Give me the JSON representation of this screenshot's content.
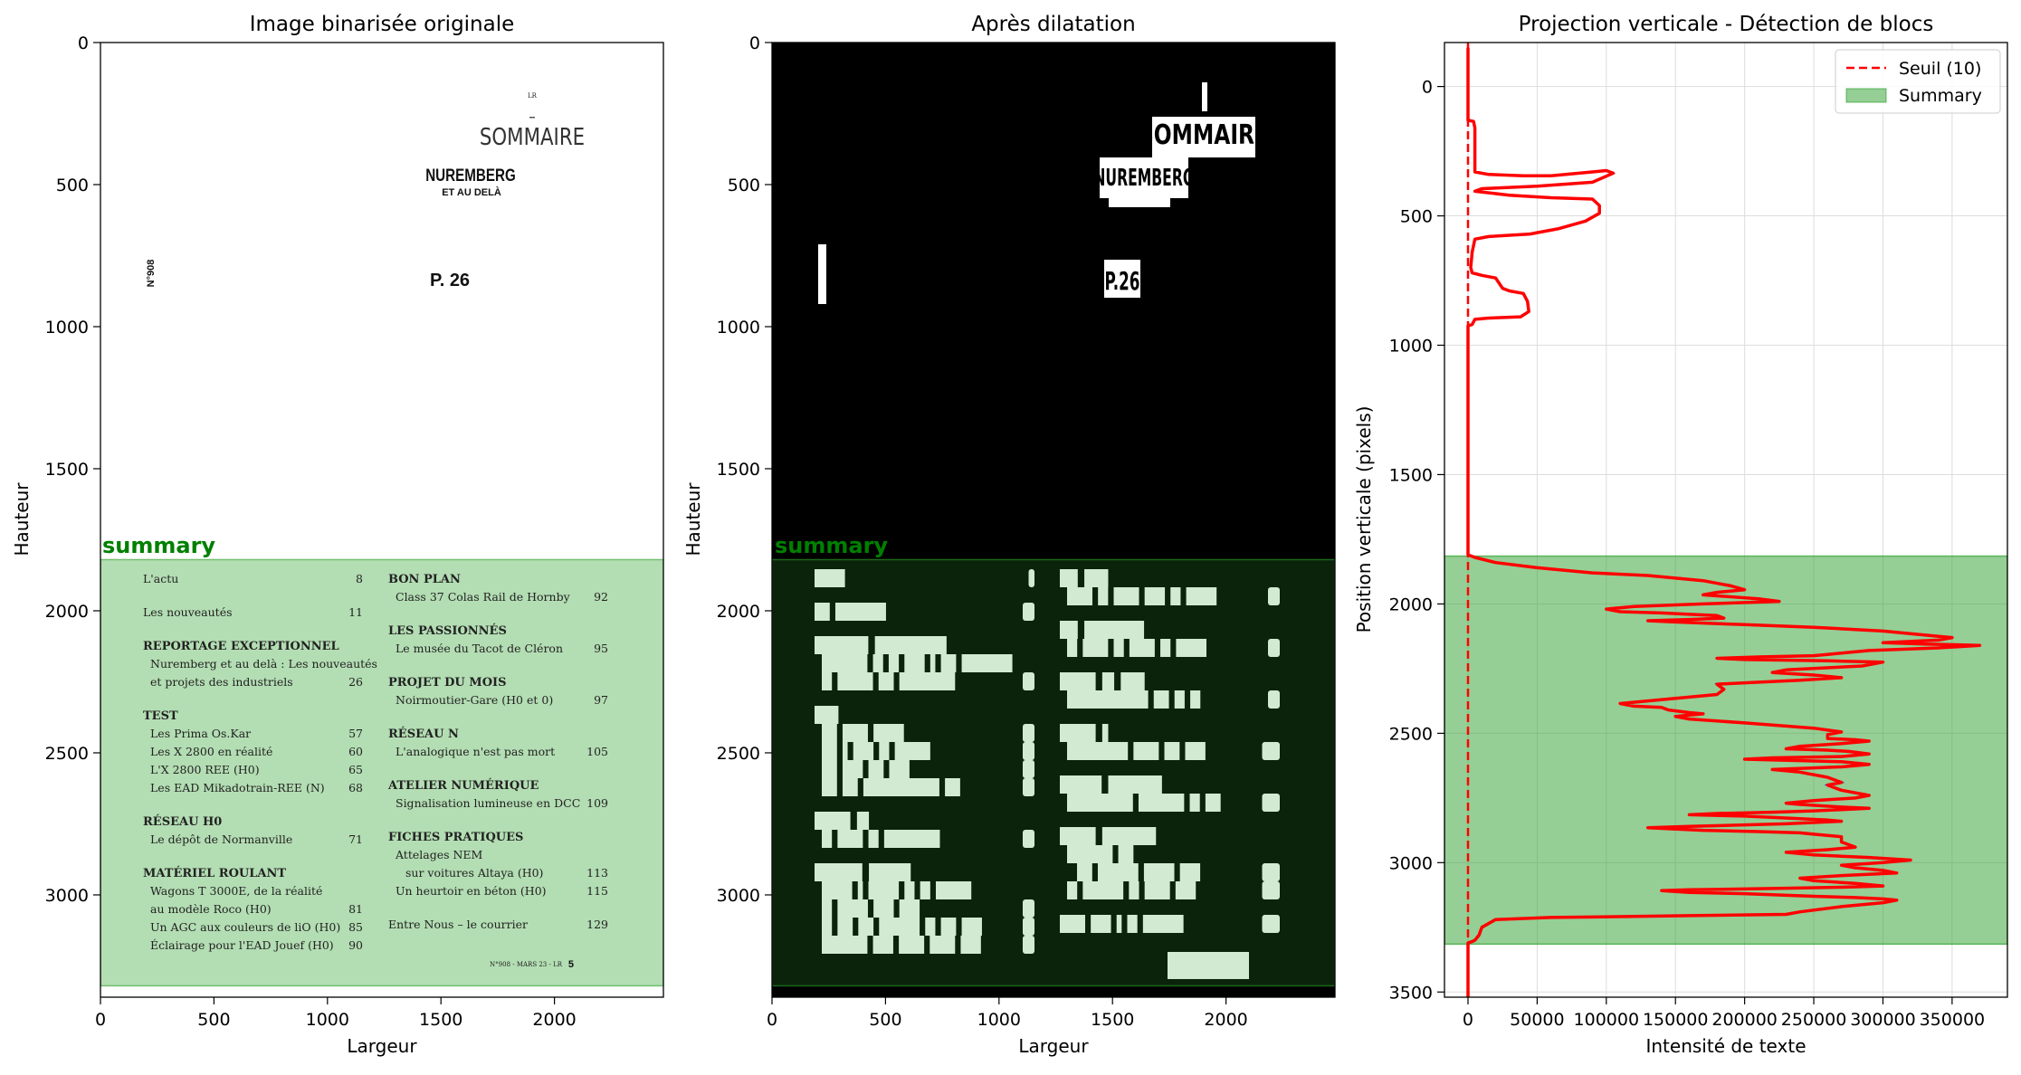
{
  "figure": {
    "panels": {
      "original": {
        "title": "Image binarisée originale",
        "xlabel": "Largeur",
        "ylabel": "Hauteur",
        "region_label": "summary"
      },
      "dilated": {
        "title": "Après dilatation",
        "xlabel": "Largeur",
        "ylabel": "Hauteur",
        "region_label": "summary"
      },
      "projection": {
        "title": "Projection verticale - Détection de blocs",
        "xlabel": "Intensité de texte",
        "ylabel": "Position verticale (pixels)"
      }
    },
    "legend": {
      "threshold": "Seuil (10)",
      "summary": "Summary"
    },
    "colors": {
      "summary_fill": "#2ca02c",
      "profile_line": "#ff0000",
      "profile_edge": "#0000ff",
      "threshold_line": "#ff0000"
    }
  },
  "magazine": {
    "header_small": "LR",
    "sommaire": "SOMMAIRE",
    "feature_title": "NUREMBERG",
    "feature_sub": "ET AU DELÀ",
    "page_ref": "P. 26",
    "issue_vertical": "N°908",
    "toc_left": [
      {
        "type": "item",
        "text": "L'actu",
        "page": "8"
      },
      {
        "type": "item",
        "text": "Les nouveautés",
        "page": "11"
      },
      {
        "type": "head",
        "text": "REPORTAGE EXCEPTIONNEL",
        "page": ""
      },
      {
        "type": "sub",
        "text": "Nuremberg et au delà : Les nouveautés",
        "page": ""
      },
      {
        "type": "sub",
        "text": "et projets des industriels",
        "page": "26"
      },
      {
        "type": "head",
        "text": "TEST",
        "page": ""
      },
      {
        "type": "sub",
        "text": "Les Prima Os.Kar",
        "page": "57"
      },
      {
        "type": "sub",
        "text": "Les X 2800 en réalité",
        "page": "60"
      },
      {
        "type": "sub",
        "text": "L'X 2800 REE (H0)",
        "page": "65"
      },
      {
        "type": "sub",
        "text": "Les EAD Mikadotrain-REE (N)",
        "page": "68"
      },
      {
        "type": "head",
        "text": "RÉSEAU H0",
        "page": ""
      },
      {
        "type": "sub",
        "text": "Le dépôt de Normanville",
        "page": "71"
      },
      {
        "type": "head",
        "text": "MATÉRIEL ROULANT",
        "page": ""
      },
      {
        "type": "sub",
        "text": "Wagons T 3000E, de la réalité",
        "page": ""
      },
      {
        "type": "sub",
        "text": "au modèle Roco (H0)",
        "page": "81"
      },
      {
        "type": "sub",
        "text": "Un AGC aux couleurs de liO (H0)",
        "page": "85"
      },
      {
        "type": "sub",
        "text": "Éclairage pour l'EAD Jouef (H0)",
        "page": "90"
      }
    ],
    "toc_right": [
      {
        "type": "head",
        "text": "BON PLAN",
        "page": ""
      },
      {
        "type": "sub",
        "text": "Class 37 Colas Rail de Hornby",
        "page": "92"
      },
      {
        "type": "head",
        "text": "LES PASSIONNÉS",
        "page": ""
      },
      {
        "type": "sub",
        "text": "Le musée du Tacot de Cléron",
        "page": "95"
      },
      {
        "type": "head",
        "text": "PROJET DU MOIS",
        "page": ""
      },
      {
        "type": "sub",
        "text": "Noirmoutier-Gare (H0 et 0)",
        "page": "97"
      },
      {
        "type": "head",
        "text": "RÉSEAU N",
        "page": ""
      },
      {
        "type": "sub",
        "text": "L'analogique n'est pas mort",
        "page": "105"
      },
      {
        "type": "head",
        "text": "ATELIER NUMÉRIQUE",
        "page": ""
      },
      {
        "type": "sub",
        "text": "Signalisation lumineuse en DCC",
        "page": "109"
      },
      {
        "type": "head",
        "text": "FICHES PRATIQUES",
        "page": ""
      },
      {
        "type": "sub",
        "text": "Attelages NEM",
        "page": ""
      },
      {
        "type": "sub2",
        "text": "sur voitures Altaya (H0)",
        "page": "113"
      },
      {
        "type": "sub",
        "text": "Un heurtoir en béton (H0)",
        "page": "115"
      },
      {
        "type": "item",
        "text": "Entre Nous – le courrier",
        "page": "129"
      }
    ],
    "footer": "N°908 - MARS 23 - LR",
    "footer_page": "5",
    "dilated_header": [
      "SOMMAIRE",
      "NUREMBERG",
      "P.26"
    ]
  },
  "chart_data": [
    {
      "type": "image",
      "title": "Image binarisée originale",
      "xlabel": "Largeur",
      "ylabel": "Hauteur",
      "xlim": [
        0,
        2480
      ],
      "ylim": [
        3360,
        0
      ],
      "xticks": [
        0,
        500,
        1000,
        1500,
        2000
      ],
      "yticks": [
        0,
        500,
        1000,
        1500,
        2000,
        2500,
        3000
      ],
      "regions": [
        {
          "label": "summary",
          "y0": 1820,
          "y1": 3320
        }
      ]
    },
    {
      "type": "image",
      "title": "Après dilatation",
      "xlabel": "Largeur",
      "ylabel": "Hauteur",
      "xlim": [
        0,
        2480
      ],
      "ylim": [
        3360,
        0
      ],
      "xticks": [
        0,
        500,
        1000,
        1500,
        2000
      ],
      "yticks": [
        0,
        500,
        1000,
        1500,
        2000,
        2500,
        3000
      ],
      "regions": [
        {
          "label": "summary",
          "y0": 1820,
          "y1": 3320
        }
      ]
    },
    {
      "type": "line",
      "title": "Projection verticale - Détection de blocs",
      "xlabel": "Intensité de texte",
      "ylabel": "Position verticale (pixels)",
      "xlim": [
        -17000,
        390000
      ],
      "ylim": [
        3520,
        -170
      ],
      "xticks": [
        0,
        50000,
        100000,
        150000,
        200000,
        250000,
        300000,
        350000
      ],
      "yticks": [
        0,
        500,
        1000,
        1500,
        2000,
        2500,
        3000,
        3500
      ],
      "grid": true,
      "legend_position": "top-right",
      "threshold": {
        "name": "Seuil (10)",
        "value": 10
      },
      "regions": [
        {
          "name": "Summary",
          "y0": 1815,
          "y1": 3315
        }
      ],
      "series": [
        {
          "points": [
            [
              0,
              -150
            ],
            [
              0,
              130
            ],
            [
              4000,
              135
            ],
            [
              5000,
              160
            ],
            [
              5000,
              330
            ],
            [
              15000,
              340
            ],
            [
              40000,
              345
            ],
            [
              60000,
              345
            ],
            [
              90000,
              330
            ],
            [
              100000,
              325
            ],
            [
              105000,
              335
            ],
            [
              90000,
              370
            ],
            [
              50000,
              385
            ],
            [
              10000,
              395
            ],
            [
              5000,
              405
            ],
            [
              30000,
              420
            ],
            [
              60000,
              430
            ],
            [
              90000,
              435
            ],
            [
              95000,
              460
            ],
            [
              95000,
              490
            ],
            [
              85000,
              520
            ],
            [
              65000,
              550
            ],
            [
              50000,
              565
            ],
            [
              45000,
              570
            ],
            [
              15000,
              580
            ],
            [
              5000,
              590
            ],
            [
              3000,
              640
            ],
            [
              2000,
              700
            ],
            [
              3000,
              720
            ],
            [
              10000,
              730
            ],
            [
              20000,
              740
            ],
            [
              25000,
              780
            ],
            [
              30000,
              790
            ],
            [
              40000,
              800
            ],
            [
              43000,
              830
            ],
            [
              44000,
              870
            ],
            [
              38000,
              890
            ],
            [
              15000,
              895
            ],
            [
              5000,
              900
            ],
            [
              3000,
              920
            ],
            [
              0,
              925
            ],
            [
              0,
              1810
            ],
            [
              5000,
              1820
            ],
            [
              20000,
              1840
            ],
            [
              50000,
              1860
            ],
            [
              90000,
              1880
            ],
            [
              130000,
              1890
            ],
            [
              170000,
              1910
            ],
            [
              190000,
              1930
            ],
            [
              200000,
              1945
            ],
            [
              180000,
              1955
            ],
            [
              170000,
              1965
            ],
            [
              210000,
              1980
            ],
            [
              225000,
              1990
            ],
            [
              170000,
              2000
            ],
            [
              120000,
              2010
            ],
            [
              100000,
              2020
            ],
            [
              110000,
              2030
            ],
            [
              140000,
              2035
            ],
            [
              160000,
              2040
            ],
            [
              180000,
              2045
            ],
            [
              185000,
              2055
            ],
            [
              160000,
              2060
            ],
            [
              130000,
              2065
            ],
            [
              150000,
              2070
            ],
            [
              200000,
              2080
            ],
            [
              250000,
              2090
            ],
            [
              300000,
              2105
            ],
            [
              330000,
              2120
            ],
            [
              350000,
              2130
            ],
            [
              340000,
              2140
            ],
            [
              300000,
              2150
            ],
            [
              330000,
              2155
            ],
            [
              370000,
              2160
            ],
            [
              340000,
              2170
            ],
            [
              290000,
              2180
            ],
            [
              260000,
              2195
            ],
            [
              250000,
              2200
            ],
            [
              210000,
              2205
            ],
            [
              180000,
              2210
            ],
            [
              200000,
              2215
            ],
            [
              260000,
              2220
            ],
            [
              300000,
              2225
            ],
            [
              285000,
              2240
            ],
            [
              230000,
              2255
            ],
            [
              220000,
              2265
            ],
            [
              250000,
              2275
            ],
            [
              270000,
              2285
            ],
            [
              240000,
              2295
            ],
            [
              200000,
              2305
            ],
            [
              180000,
              2310
            ],
            [
              185000,
              2330
            ],
            [
              180000,
              2350
            ],
            [
              130000,
              2375
            ],
            [
              110000,
              2385
            ],
            [
              120000,
              2395
            ],
            [
              140000,
              2400
            ],
            [
              145000,
              2410
            ],
            [
              160000,
              2420
            ],
            [
              170000,
              2425
            ],
            [
              150000,
              2435
            ],
            [
              160000,
              2445
            ],
            [
              200000,
              2460
            ],
            [
              250000,
              2480
            ],
            [
              270000,
              2495
            ],
            [
              260000,
              2505
            ],
            [
              260000,
              2520
            ],
            [
              280000,
              2525
            ],
            [
              290000,
              2530
            ],
            [
              270000,
              2540
            ],
            [
              240000,
              2550
            ],
            [
              230000,
              2560
            ],
            [
              260000,
              2565
            ],
            [
              275000,
              2570
            ],
            [
              290000,
              2580
            ],
            [
              270000,
              2590
            ],
            [
              220000,
              2595
            ],
            [
              200000,
              2600
            ],
            [
              270000,
              2610
            ],
            [
              290000,
              2620
            ],
            [
              270000,
              2630
            ],
            [
              220000,
              2640
            ],
            [
              240000,
              2650
            ],
            [
              260000,
              2670
            ],
            [
              270000,
              2690
            ],
            [
              260000,
              2700
            ],
            [
              270000,
              2720
            ],
            [
              290000,
              2740
            ],
            [
              280000,
              2750
            ],
            [
              250000,
              2760
            ],
            [
              230000,
              2770
            ],
            [
              240000,
              2775
            ],
            [
              270000,
              2785
            ],
            [
              290000,
              2790
            ],
            [
              250000,
              2800
            ],
            [
              220000,
              2805
            ],
            [
              180000,
              2810
            ],
            [
              160000,
              2815
            ],
            [
              200000,
              2820
            ],
            [
              240000,
              2830
            ],
            [
              260000,
              2835
            ],
            [
              270000,
              2840
            ],
            [
              230000,
              2850
            ],
            [
              160000,
              2860
            ],
            [
              130000,
              2865
            ],
            [
              170000,
              2875
            ],
            [
              210000,
              2880
            ],
            [
              240000,
              2885
            ],
            [
              250000,
              2890
            ],
            [
              270000,
              2900
            ],
            [
              270000,
              2920
            ],
            [
              280000,
              2940
            ],
            [
              260000,
              2950
            ],
            [
              230000,
              2960
            ],
            [
              250000,
              2970
            ],
            [
              290000,
              2980
            ],
            [
              320000,
              2990
            ],
            [
              300000,
              3000
            ],
            [
              270000,
              3010
            ],
            [
              280000,
              3020
            ],
            [
              300000,
              3030
            ],
            [
              310000,
              3040
            ],
            [
              270000,
              3050
            ],
            [
              240000,
              3060
            ],
            [
              250000,
              3070
            ],
            [
              280000,
              3080
            ],
            [
              300000,
              3090
            ],
            [
              270000,
              3095
            ],
            [
              220000,
              3100
            ],
            [
              160000,
              3105
            ],
            [
              140000,
              3108
            ],
            [
              160000,
              3115
            ],
            [
              200000,
              3120
            ],
            [
              250000,
              3130
            ],
            [
              280000,
              3135
            ],
            [
              300000,
              3140
            ],
            [
              310000,
              3145
            ],
            [
              300000,
              3155
            ],
            [
              270000,
              3170
            ],
            [
              240000,
              3190
            ],
            [
              230000,
              3200
            ],
            [
              160000,
              3205
            ],
            [
              90000,
              3210
            ],
            [
              60000,
              3212
            ],
            [
              20000,
              3220
            ],
            [
              10000,
              3250
            ],
            [
              8000,
              3280
            ],
            [
              5000,
              3300
            ],
            [
              3000,
              3305
            ],
            [
              0,
              3310
            ],
            [
              0,
              3540
            ]
          ]
        }
      ]
    }
  ]
}
